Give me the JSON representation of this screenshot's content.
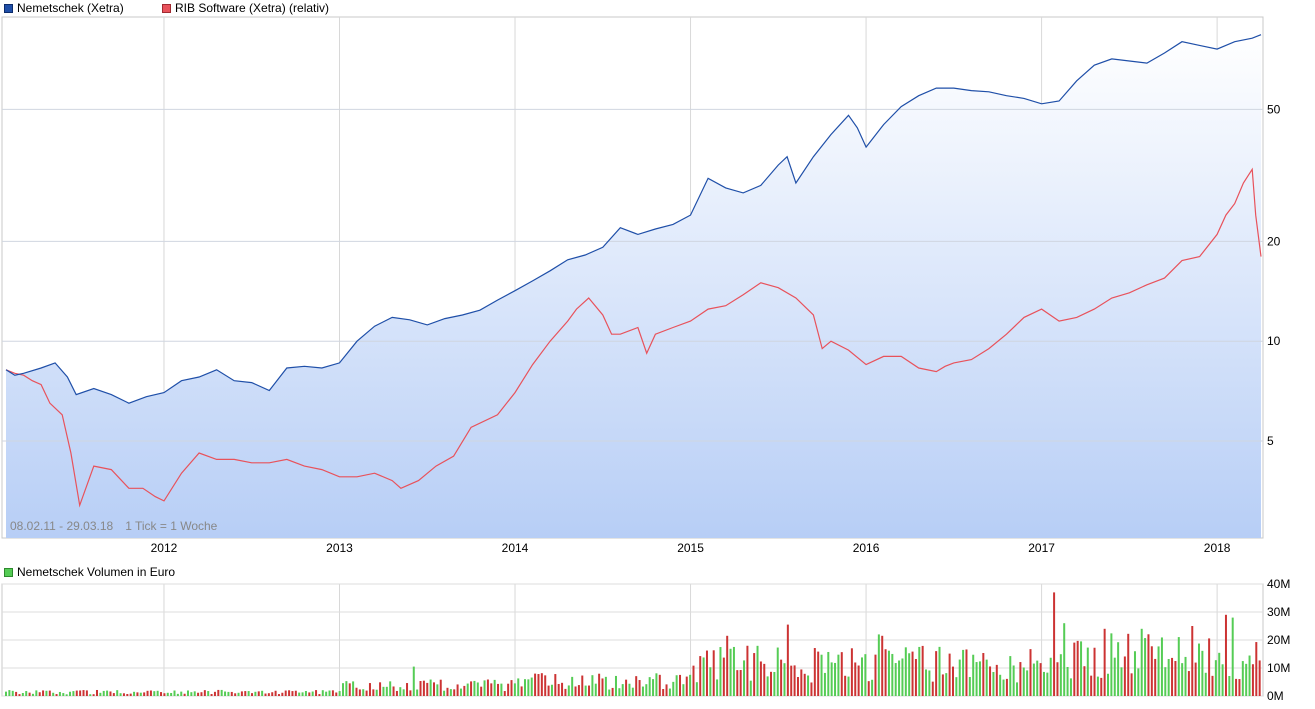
{
  "legend": {
    "series1": {
      "label": "Nemetschek (Xetra)",
      "color": "#1f4fa8"
    },
    "series2": {
      "label": "RIB Software (Xetra) (relativ)",
      "color": "#e8525b"
    },
    "volume": {
      "label": "Nemetschek Volumen in Euro",
      "color": "#55cc55"
    }
  },
  "info": {
    "range": "08.02.11 - 29.03.18",
    "tick": "1 Tick = 1 Woche"
  },
  "chart_data": [
    {
      "type": "line",
      "scale": "log",
      "x_range": [
        2011.1,
        2018.25
      ],
      "ylim": [
        2.55,
        95
      ],
      "xticks": [
        "2012",
        "2013",
        "2014",
        "2015",
        "2016",
        "2017",
        "2018"
      ],
      "yticks": [
        "5",
        "10",
        "20",
        "50"
      ],
      "fill_under": "series1",
      "series": [
        {
          "name": "Nemetschek (Xetra)",
          "color": "#1f4fa8",
          "x": [
            2011.1,
            2011.15,
            2011.2,
            2011.3,
            2011.38,
            2011.45,
            2011.5,
            2011.6,
            2011.7,
            2011.8,
            2011.9,
            2012.0,
            2012.1,
            2012.2,
            2012.3,
            2012.4,
            2012.5,
            2012.6,
            2012.7,
            2012.8,
            2012.9,
            2013.0,
            2013.1,
            2013.2,
            2013.3,
            2013.4,
            2013.5,
            2013.6,
            2013.7,
            2013.8,
            2013.9,
            2014.0,
            2014.1,
            2014.2,
            2014.3,
            2014.4,
            2014.5,
            2014.6,
            2014.7,
            2014.8,
            2014.9,
            2015.0,
            2015.1,
            2015.2,
            2015.3,
            2015.4,
            2015.5,
            2015.55,
            2015.6,
            2015.7,
            2015.8,
            2015.9,
            2015.95,
            2016.0,
            2016.1,
            2016.2,
            2016.3,
            2016.4,
            2016.5,
            2016.6,
            2016.7,
            2016.8,
            2016.9,
            2017.0,
            2017.1,
            2017.2,
            2017.3,
            2017.4,
            2017.5,
            2017.6,
            2017.7,
            2017.8,
            2017.9,
            2018.0,
            2018.1,
            2018.2,
            2018.25
          ],
          "values": [
            8.2,
            7.9,
            8.0,
            8.3,
            8.6,
            7.8,
            6.9,
            7.2,
            6.9,
            6.5,
            6.8,
            7.0,
            7.6,
            7.8,
            8.2,
            7.6,
            7.5,
            7.1,
            8.3,
            8.4,
            8.3,
            8.6,
            10.0,
            11.1,
            11.8,
            11.6,
            11.2,
            11.7,
            12.0,
            12.4,
            13.3,
            14.2,
            15.2,
            16.3,
            17.6,
            18.2,
            19.2,
            22.0,
            21.0,
            21.8,
            22.5,
            24.0,
            31.0,
            29.0,
            28.0,
            29.5,
            34.0,
            36.0,
            30.0,
            36.0,
            42.0,
            48.0,
            44.0,
            38.5,
            45.0,
            51.0,
            55.0,
            58.0,
            58.0,
            57.0,
            56.5,
            55.0,
            54.0,
            52.0,
            53.0,
            61.0,
            68.0,
            71.0,
            70.0,
            69.0,
            74.0,
            80.0,
            78.0,
            76.0,
            80.0,
            82.0,
            84.0
          ]
        },
        {
          "name": "RIB Software (Xetra) (relativ)",
          "color": "#e8525b",
          "x": [
            2011.1,
            2011.15,
            2011.2,
            2011.25,
            2011.3,
            2011.35,
            2011.42,
            2011.47,
            2011.52,
            2011.6,
            2011.7,
            2011.8,
            2011.88,
            2011.95,
            2012.0,
            2012.1,
            2012.2,
            2012.3,
            2012.4,
            2012.5,
            2012.6,
            2012.7,
            2012.8,
            2012.9,
            2013.0,
            2013.1,
            2013.2,
            2013.3,
            2013.35,
            2013.45,
            2013.55,
            2013.65,
            2013.75,
            2013.9,
            2014.0,
            2014.1,
            2014.2,
            2014.3,
            2014.35,
            2014.42,
            2014.5,
            2014.55,
            2014.6,
            2014.7,
            2014.75,
            2014.8,
            2014.9,
            2015.0,
            2015.1,
            2015.2,
            2015.3,
            2015.4,
            2015.5,
            2015.6,
            2015.7,
            2015.75,
            2015.8,
            2015.9,
            2016.0,
            2016.1,
            2016.2,
            2016.3,
            2016.4,
            2016.45,
            2016.5,
            2016.6,
            2016.7,
            2016.8,
            2016.9,
            2017.0,
            2017.1,
            2017.2,
            2017.3,
            2017.4,
            2017.5,
            2017.6,
            2017.7,
            2017.8,
            2017.9,
            2018.0,
            2018.05,
            2018.1,
            2018.15,
            2018.2,
            2018.22,
            2018.25
          ],
          "values": [
            8.2,
            8.0,
            7.9,
            7.6,
            7.4,
            6.5,
            6.0,
            4.6,
            3.2,
            4.2,
            4.1,
            3.6,
            3.6,
            3.4,
            3.3,
            4.0,
            4.6,
            4.4,
            4.4,
            4.3,
            4.3,
            4.4,
            4.2,
            4.1,
            3.9,
            3.9,
            4.0,
            3.8,
            3.6,
            3.8,
            4.2,
            4.5,
            5.5,
            6.0,
            7.0,
            8.5,
            10.0,
            11.5,
            12.5,
            13.5,
            12.0,
            10.5,
            10.5,
            11.0,
            9.2,
            10.5,
            11.0,
            11.5,
            12.5,
            12.8,
            13.8,
            15.0,
            14.5,
            13.5,
            12.0,
            9.5,
            10.0,
            9.4,
            8.5,
            9.0,
            9.0,
            8.3,
            8.1,
            8.4,
            8.6,
            8.8,
            9.5,
            10.5,
            11.8,
            12.5,
            11.5,
            11.8,
            12.5,
            13.5,
            14.0,
            14.8,
            15.5,
            17.5,
            18.0,
            21.0,
            24.0,
            26.0,
            30.0,
            33.0,
            24.0,
            18.0
          ]
        }
      ]
    },
    {
      "type": "bar",
      "title": "Nemetschek Volumen in Euro",
      "ylim": [
        0,
        40
      ],
      "yunit": "M",
      "yticks": [
        "0M",
        "10M",
        "20M",
        "30M",
        "40M"
      ],
      "xticks": [
        "2012",
        "2013",
        "2014",
        "2015",
        "2016",
        "2017",
        "2018"
      ],
      "colors": {
        "up": "#55cc55",
        "down": "#cc3333"
      },
      "x_start": 2011.1,
      "x_step": 0.0192,
      "levels_by_year": [
        {
          "from": 2011.1,
          "to": 2013.0,
          "base": 1.5
        },
        {
          "from": 2013.0,
          "to": 2014.0,
          "base": 4.0
        },
        {
          "from": 2014.0,
          "to": 2015.0,
          "base": 5.5
        },
        {
          "from": 2015.0,
          "to": 2016.0,
          "base": 12.0
        },
        {
          "from": 2016.0,
          "to": 2017.0,
          "base": 12.0
        },
        {
          "from": 2017.0,
          "to": 2018.3,
          "base": 15.0
        }
      ],
      "peaks": [
        {
          "x": 2013.43,
          "value": 10.5
        },
        {
          "x": 2015.2,
          "value": 21.5
        },
        {
          "x": 2015.55,
          "value": 25.5
        },
        {
          "x": 2016.07,
          "value": 22.0
        },
        {
          "x": 2016.1,
          "value": 21.5
        },
        {
          "x": 2017.08,
          "value": 37.0
        },
        {
          "x": 2017.12,
          "value": 26.0
        },
        {
          "x": 2017.35,
          "value": 24.0
        },
        {
          "x": 2017.57,
          "value": 24.0
        },
        {
          "x": 2017.85,
          "value": 25.0
        },
        {
          "x": 2018.05,
          "value": 29.0
        },
        {
          "x": 2018.08,
          "value": 28.0
        }
      ]
    }
  ]
}
